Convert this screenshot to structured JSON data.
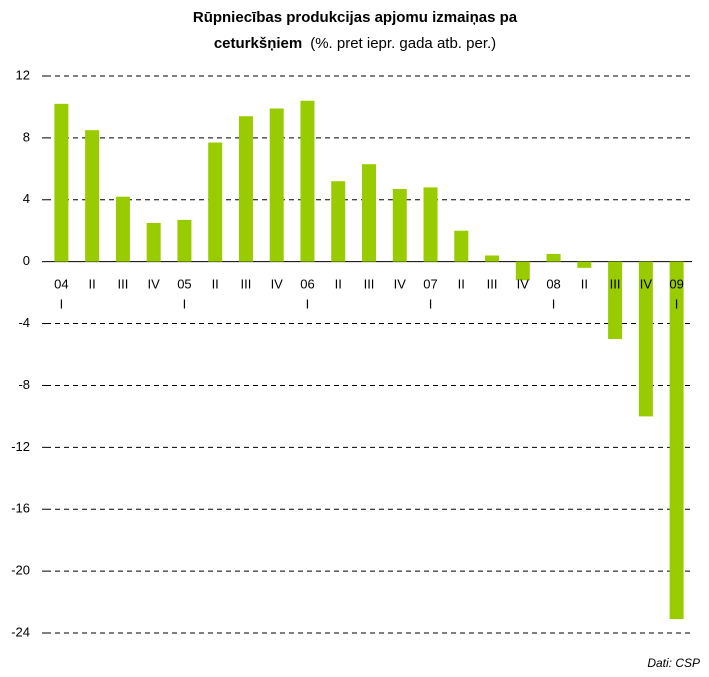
{
  "chart_data": {
    "type": "bar",
    "title": "Rūpniecības produkcijas apjomu izmaiņas pa",
    "title_line2": "ceturkšņiem",
    "subtitle": "(%. pret iepr. gada atb. per.)",
    "source": "Dati: CSP",
    "categories": [
      [
        "04",
        "I"
      ],
      "II",
      "III",
      "IV",
      [
        "05",
        "I"
      ],
      "II",
      "III",
      "IV",
      [
        "06",
        "I"
      ],
      "II",
      "III",
      "IV",
      [
        "07",
        "I"
      ],
      "II",
      "III",
      "IV",
      [
        "08",
        "I"
      ],
      "II",
      "III",
      "IV",
      [
        "09",
        "I"
      ]
    ],
    "values": [
      10.2,
      8.5,
      4.2,
      2.5,
      2.7,
      7.7,
      9.4,
      9.9,
      10.4,
      5.2,
      6.3,
      4.7,
      4.8,
      2.0,
      0.4,
      -1.2,
      0.5,
      -0.4,
      -5.0,
      -10.0,
      -23.1
    ],
    "color": "#99cc00",
    "ylim": [
      -24,
      12
    ],
    "yticks": [
      -24,
      -20,
      -16,
      -12,
      -8,
      -4,
      0,
      4,
      8,
      12
    ],
    "grid": true
  }
}
